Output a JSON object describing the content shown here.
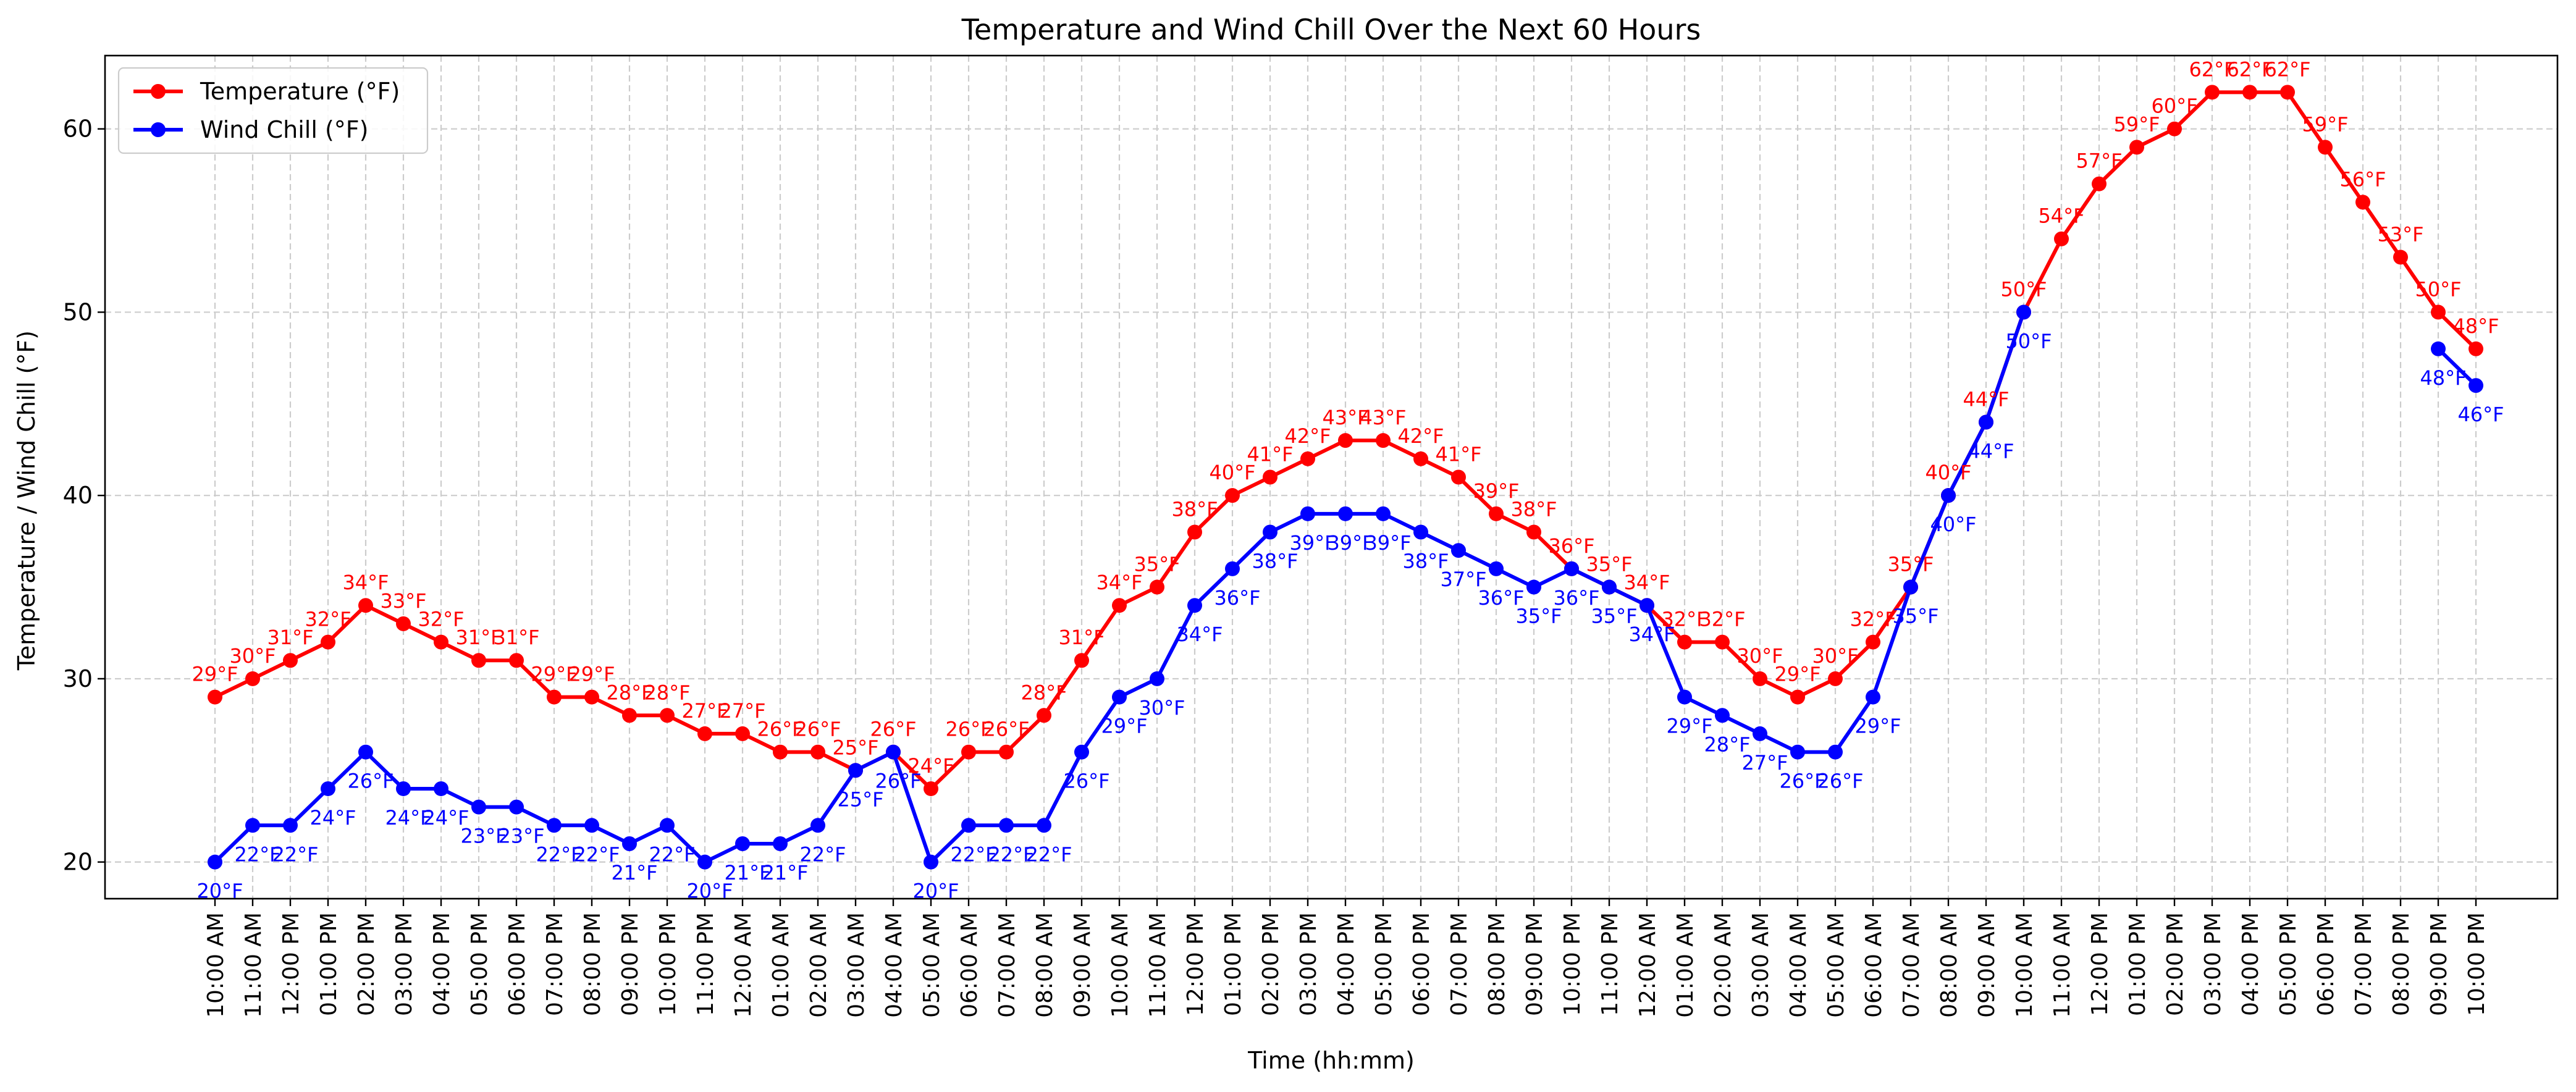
{
  "chart_data": {
    "type": "line",
    "title": "Temperature and Wind Chill Over the Next 60 Hours",
    "xlabel": "Time (hh:mm)",
    "ylabel": "Temperature / Wind Chill (°F)",
    "ylim": [
      18,
      64
    ],
    "yticks": [
      20,
      30,
      40,
      50,
      60
    ],
    "grid": true,
    "legend_position": "top-left",
    "categories": [
      "10:00 AM",
      "11:00 AM",
      "12:00 PM",
      "01:00 PM",
      "02:00 PM",
      "03:00 PM",
      "04:00 PM",
      "05:00 PM",
      "06:00 PM",
      "07:00 PM",
      "08:00 PM",
      "09:00 PM",
      "10:00 PM",
      "11:00 PM",
      "12:00 AM",
      "01:00 AM",
      "02:00 AM",
      "03:00 AM",
      "04:00 AM",
      "05:00 AM",
      "06:00 AM",
      "07:00 AM",
      "08:00 AM",
      "09:00 AM",
      "10:00 AM",
      "11:00 AM",
      "12:00 PM",
      "01:00 PM",
      "02:00 PM",
      "03:00 PM",
      "04:00 PM",
      "05:00 PM",
      "06:00 PM",
      "07:00 PM",
      "08:00 PM",
      "09:00 PM",
      "10:00 PM",
      "11:00 PM",
      "12:00 AM",
      "01:00 AM",
      "02:00 AM",
      "03:00 AM",
      "04:00 AM",
      "05:00 AM",
      "06:00 AM",
      "07:00 AM",
      "08:00 AM",
      "09:00 AM",
      "10:00 AM",
      "11:00 AM",
      "12:00 PM",
      "01:00 PM",
      "02:00 PM",
      "03:00 PM",
      "04:00 PM",
      "05:00 PM",
      "06:00 PM",
      "07:00 PM",
      "08:00 PM",
      "09:00 PM",
      "10:00 PM"
    ],
    "series": [
      {
        "name": "Temperature (°F)",
        "color": "#ff0000",
        "label_position": "above",
        "values": [
          29,
          30,
          31,
          32,
          34,
          33,
          32,
          31,
          31,
          29,
          29,
          28,
          28,
          27,
          27,
          26,
          26,
          25,
          26,
          24,
          26,
          26,
          28,
          31,
          34,
          35,
          38,
          40,
          41,
          42,
          43,
          43,
          42,
          41,
          39,
          38,
          36,
          35,
          34,
          32,
          32,
          30,
          29,
          30,
          32,
          35,
          40,
          44,
          50,
          54,
          57,
          59,
          60,
          62,
          62,
          62,
          59,
          56,
          53,
          50,
          48
        ]
      },
      {
        "name": "Wind Chill (°F)",
        "color": "#0000ff",
        "label_position": "below",
        "values": [
          20,
          22,
          22,
          24,
          26,
          24,
          24,
          23,
          23,
          22,
          22,
          21,
          22,
          20,
          21,
          21,
          22,
          25,
          26,
          20,
          22,
          22,
          22,
          26,
          29,
          30,
          34,
          36,
          38,
          39,
          39,
          39,
          38,
          37,
          36,
          35,
          36,
          35,
          34,
          29,
          28,
          27,
          26,
          26,
          29,
          35,
          40,
          44,
          50,
          null,
          null,
          null,
          null,
          null,
          null,
          null,
          null,
          null,
          null,
          48,
          46
        ]
      }
    ]
  }
}
